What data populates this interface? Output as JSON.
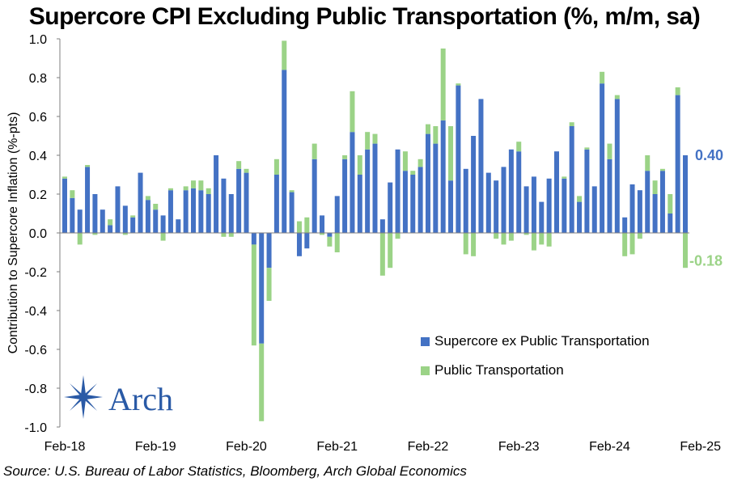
{
  "chart_data": {
    "type": "bar",
    "stacked": true,
    "title": "Supercore CPI Excluding Public Transportation (%, m/m, sa)",
    "ylabel": "Contribution to Supercore Inflation (%-pts)",
    "xlabel": "",
    "ylim": [
      -1.0,
      1.0
    ],
    "yticks": [
      "1.0",
      "0.8",
      "0.6",
      "0.4",
      "0.2",
      "0.0",
      "-0.2",
      "-0.4",
      "-0.6",
      "-0.8",
      "-1.0"
    ],
    "x_tick_labels": [
      "Feb-18",
      "Feb-19",
      "Feb-20",
      "Feb-21",
      "Feb-22",
      "Feb-23",
      "Feb-24",
      "Feb-25"
    ],
    "series": [
      {
        "name": "Supercore ex Public Transportation",
        "color": "#4472c4",
        "values": [
          0.28,
          0.18,
          0.12,
          0.34,
          0.2,
          0.12,
          0.04,
          0.24,
          0.14,
          0.08,
          0.31,
          0.17,
          0.12,
          0.09,
          0.22,
          0.07,
          0.22,
          0.23,
          0.22,
          0.2,
          0.4,
          0.28,
          0.2,
          0.33,
          0.31,
          -0.06,
          -0.57,
          -0.18,
          0.3,
          0.84,
          0.21,
          -0.12,
          -0.08,
          0.38,
          0.09,
          -0.02,
          0.19,
          0.38,
          0.52,
          0.3,
          0.43,
          0.46,
          0.07,
          0.26,
          0.43,
          0.32,
          0.3,
          0.34,
          0.51,
          0.46,
          0.58,
          0.27,
          0.76,
          0.33,
          0.5,
          0.69,
          0.31,
          0.27,
          0.34,
          0.43,
          0.42,
          0.24,
          0.29,
          0.16,
          0.28,
          0.42,
          0.28,
          0.55,
          0.16,
          0.43,
          0.24,
          0.77,
          0.38,
          0.69,
          0.08,
          0.25,
          0.22,
          0.32,
          0.2,
          0.32,
          0.1,
          0.71,
          0.4
        ]
      },
      {
        "name": "Public Transportation",
        "color": "#9bd387",
        "values": [
          0.01,
          0.04,
          -0.06,
          0.01,
          -0.01,
          0.0,
          0.03,
          0.0,
          -0.01,
          0.01,
          0.0,
          0.02,
          0.03,
          -0.04,
          0.01,
          0.0,
          0.02,
          0.04,
          0.05,
          0.03,
          0.0,
          -0.02,
          -0.02,
          0.04,
          0.02,
          -0.52,
          -0.4,
          -0.17,
          0.08,
          0.15,
          0.01,
          0.06,
          0.08,
          0.08,
          -0.01,
          -0.05,
          -0.1,
          0.02,
          0.21,
          0.1,
          0.09,
          0.05,
          -0.22,
          -0.18,
          -0.03,
          0.1,
          0.02,
          0.04,
          0.05,
          0.09,
          0.37,
          0.28,
          0.01,
          -0.11,
          -0.12,
          0.0,
          0.0,
          -0.03,
          -0.06,
          -0.04,
          0.05,
          -0.01,
          -0.09,
          -0.06,
          -0.07,
          0.0,
          0.01,
          0.02,
          0.03,
          0.01,
          0.0,
          0.06,
          0.08,
          0.02,
          -0.12,
          -0.11,
          -0.03,
          0.08,
          0.07,
          0.01,
          0.1,
          0.04,
          -0.18
        ]
      }
    ],
    "end_labels": [
      "0.40",
      "-0.18"
    ],
    "legend_position": "bottom-right",
    "grid": false
  },
  "source": "Source: U.S. Bureau of Labor Statistics, Bloomberg, Arch Global Economics",
  "logo": {
    "text": "Arch",
    "icon": "compass-star-icon"
  }
}
